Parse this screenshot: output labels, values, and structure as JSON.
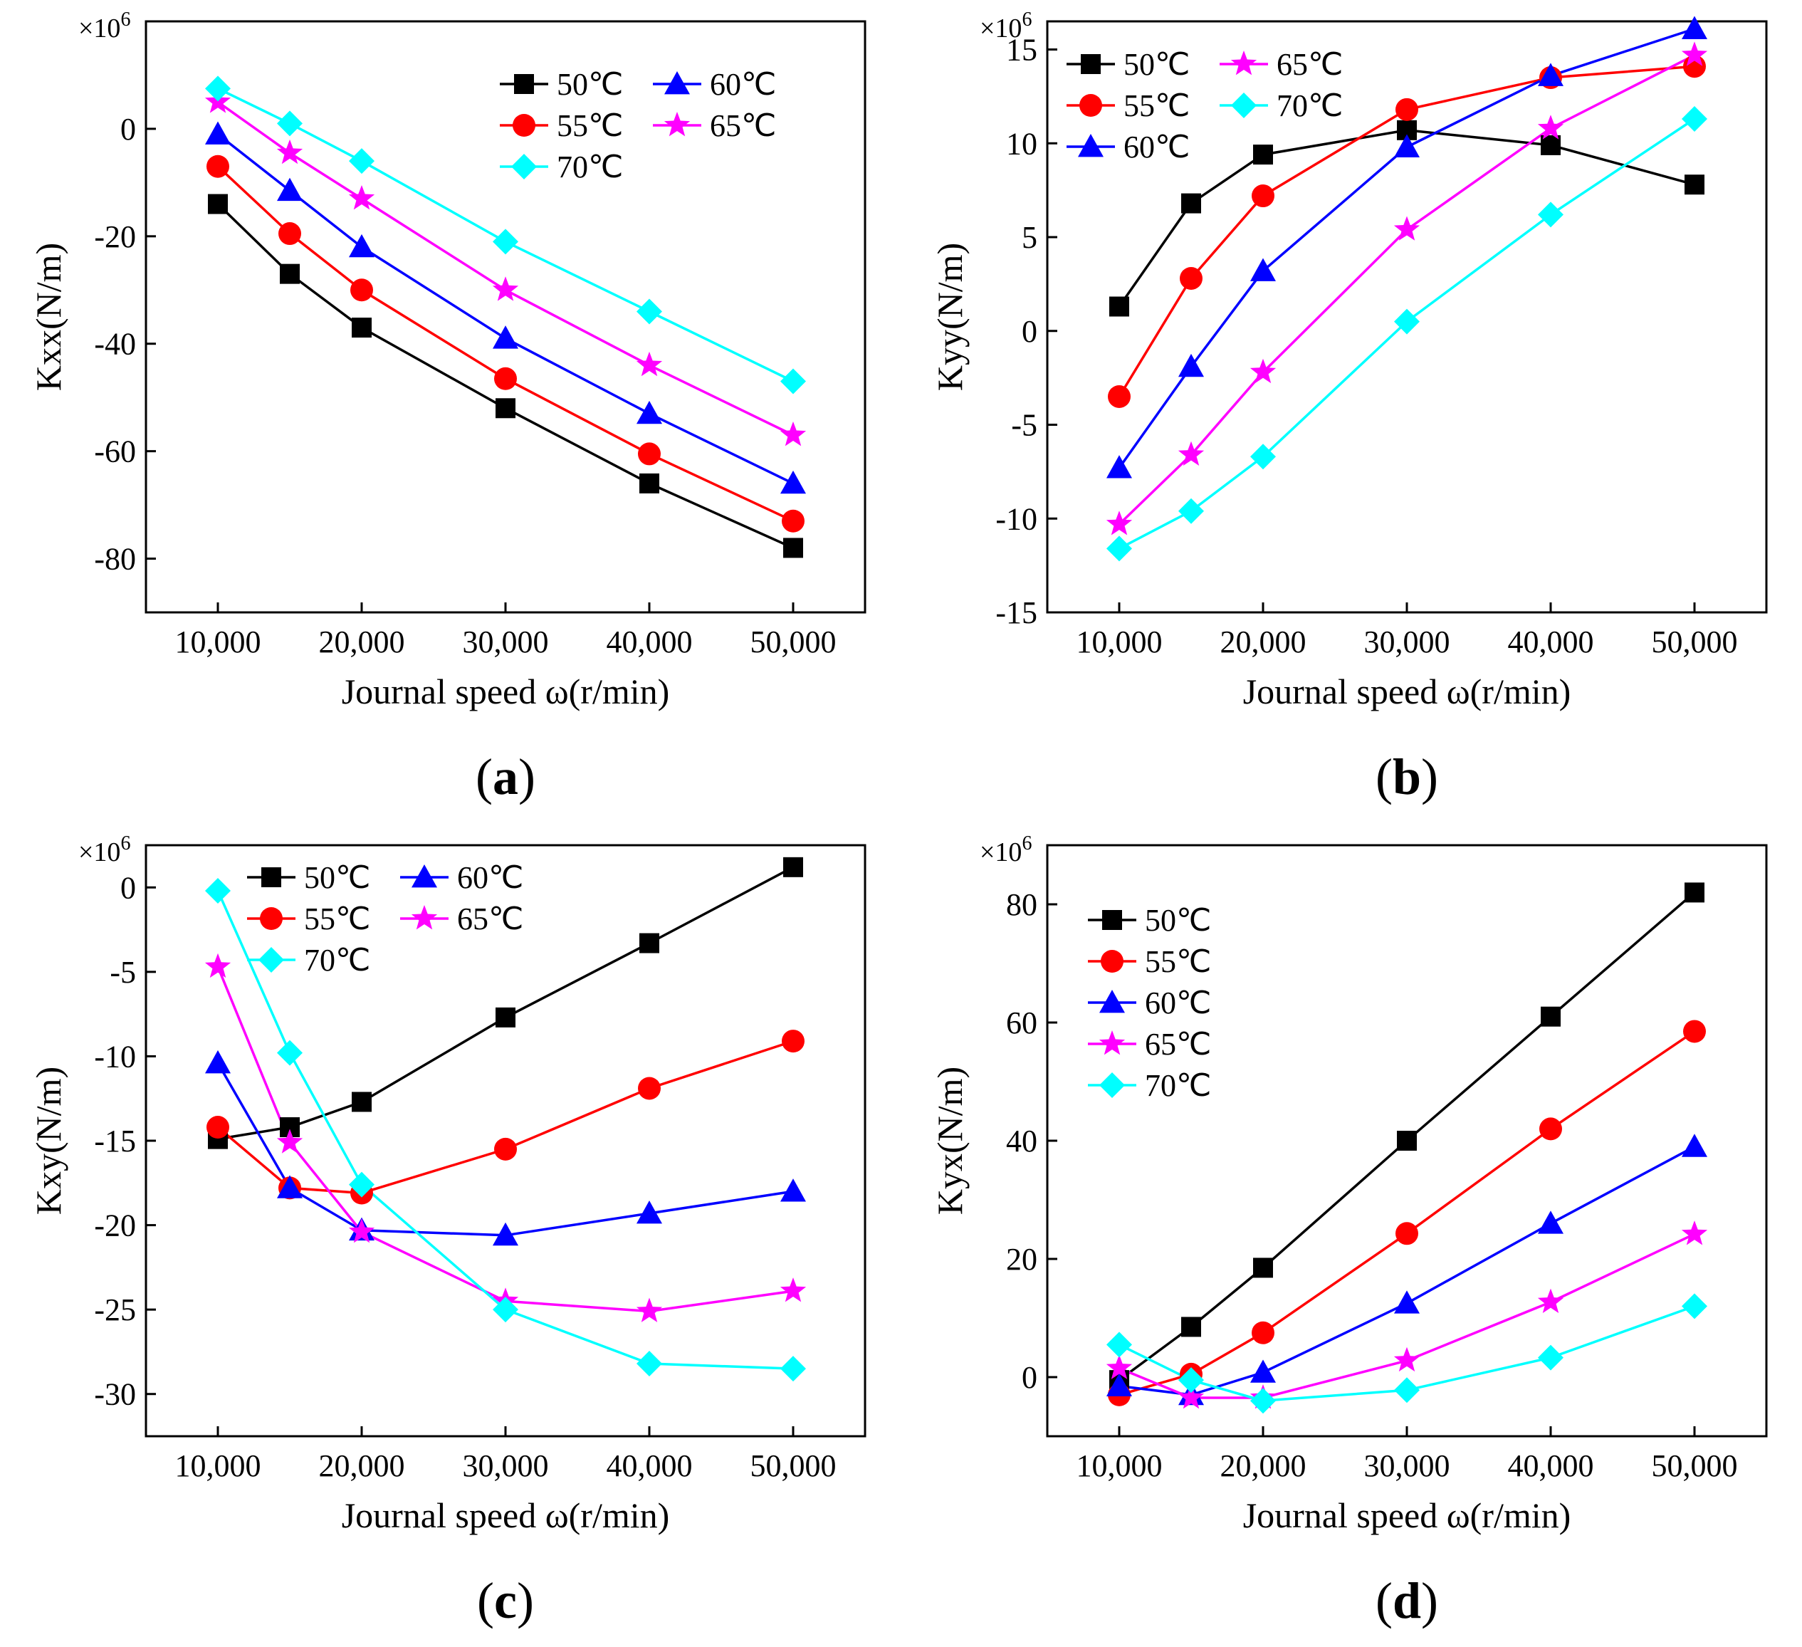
{
  "colors": {
    "c50": "#000000",
    "c55": "#ff0000",
    "c60": "#0000ff",
    "c65": "#ff00ff",
    "c70": "#00ffff"
  },
  "chart_data": [
    {
      "id": "a",
      "type": "line",
      "panel_label": "a",
      "xlabel": "Journal speed ω(r/min)",
      "ylabel": "Kxx(N/m)",
      "y_multiplier": "×10",
      "y_exponent": "6",
      "x": [
        10000,
        15000,
        20000,
        30000,
        40000,
        50000
      ],
      "x_ticks": [
        10000,
        20000,
        30000,
        40000,
        50000
      ],
      "x_tick_labels": [
        "10,000",
        "20,000",
        "30,000",
        "40,000",
        "50,000"
      ],
      "xlim": [
        5000,
        55000
      ],
      "ylim": [
        -90,
        20
      ],
      "y_ticks": [
        -80,
        -60,
        -40,
        -20,
        0
      ],
      "y_tick_labels": [
        "-80",
        "-60",
        "-40",
        "-20",
        "0"
      ],
      "legend_position": "top-right",
      "legend_layout": [
        [
          "0",
          "2"
        ],
        [
          "1",
          "3"
        ],
        [
          "4"
        ]
      ],
      "series": [
        {
          "name": "50℃",
          "marker": "square",
          "color": "#000000",
          "values": [
            -14,
            -27,
            -37,
            -52,
            -66,
            -78
          ]
        },
        {
          "name": "55℃",
          "marker": "circle",
          "color": "#ff0000",
          "values": [
            -7,
            -19.5,
            -30,
            -46.5,
            -60.5,
            -73
          ]
        },
        {
          "name": "60℃",
          "marker": "triangle",
          "color": "#0000ff",
          "values": [
            -1,
            -11.5,
            -22,
            -39,
            -53,
            -66
          ]
        },
        {
          "name": "65℃",
          "marker": "star",
          "color": "#ff00ff",
          "values": [
            5,
            -4.5,
            -13,
            -30,
            -44,
            -57
          ]
        },
        {
          "name": "70℃",
          "marker": "diamond",
          "color": "#00ffff",
          "values": [
            7.5,
            1,
            -6,
            -21,
            -34,
            -47
          ]
        }
      ]
    },
    {
      "id": "b",
      "type": "line",
      "panel_label": "b",
      "xlabel": "Journal speed ω(r/min)",
      "ylabel": "Kyy(N/m)",
      "y_multiplier": "×10",
      "y_exponent": "6",
      "x": [
        10000,
        15000,
        20000,
        30000,
        40000,
        50000
      ],
      "x_ticks": [
        10000,
        20000,
        30000,
        40000,
        50000
      ],
      "x_tick_labels": [
        "10,000",
        "20,000",
        "30,000",
        "40,000",
        "50,000"
      ],
      "xlim": [
        5000,
        55000
      ],
      "ylim": [
        -15,
        16.5
      ],
      "y_ticks": [
        -15,
        -10,
        -5,
        0,
        5,
        10,
        15
      ],
      "y_tick_labels": [
        "-15",
        "-10",
        "-5",
        "0",
        "5",
        "10",
        "15"
      ],
      "legend_position": "top-left",
      "legend_layout": [
        [
          "0",
          "3"
        ],
        [
          "1",
          "4"
        ],
        [
          "2"
        ]
      ],
      "series": [
        {
          "name": "50℃",
          "marker": "square",
          "color": "#000000",
          "values": [
            1.3,
            6.8,
            9.4,
            10.7,
            9.9,
            7.8
          ]
        },
        {
          "name": "55℃",
          "marker": "circle",
          "color": "#ff0000",
          "values": [
            -3.5,
            2.8,
            7.2,
            11.8,
            13.5,
            14.1
          ]
        },
        {
          "name": "60℃",
          "marker": "triangle",
          "color": "#0000ff",
          "values": [
            -7.3,
            -1.9,
            3.2,
            9.8,
            13.6,
            16.1
          ]
        },
        {
          "name": "65℃",
          "marker": "star",
          "color": "#ff00ff",
          "values": [
            -10.3,
            -6.6,
            -2.2,
            5.4,
            10.8,
            14.7
          ]
        },
        {
          "name": "70℃",
          "marker": "diamond",
          "color": "#00ffff",
          "values": [
            -11.6,
            -9.6,
            -6.7,
            0.5,
            6.2,
            11.3
          ]
        }
      ]
    },
    {
      "id": "c",
      "type": "line",
      "panel_label": "c",
      "xlabel": "Journal speed ω(r/min)",
      "ylabel": "Kxy(N/m)",
      "y_multiplier": "×10",
      "y_exponent": "6",
      "x": [
        10000,
        15000,
        20000,
        30000,
        40000,
        50000
      ],
      "x_ticks": [
        10000,
        20000,
        30000,
        40000,
        50000
      ],
      "x_tick_labels": [
        "10,000",
        "20,000",
        "30,000",
        "40,000",
        "50,000"
      ],
      "xlim": [
        5000,
        55000
      ],
      "ylim": [
        -32.5,
        2.5
      ],
      "y_ticks": [
        -30,
        -25,
        -20,
        -15,
        -10,
        -5,
        0
      ],
      "y_tick_labels": [
        "-30",
        "-25",
        "-20",
        "-15",
        "-10",
        "-5",
        "0"
      ],
      "legend_position": "top-center",
      "legend_layout": [
        [
          "0",
          "2"
        ],
        [
          "1",
          "3"
        ],
        [
          "4"
        ]
      ],
      "series": [
        {
          "name": "50℃",
          "marker": "square",
          "color": "#000000",
          "values": [
            -14.9,
            -14.2,
            -12.7,
            -7.7,
            -3.3,
            1.2
          ]
        },
        {
          "name": "55℃",
          "marker": "circle",
          "color": "#ff0000",
          "values": [
            -14.2,
            -17.8,
            -18.1,
            -15.5,
            -11.9,
            -9.1
          ]
        },
        {
          "name": "60℃",
          "marker": "triangle",
          "color": "#0000ff",
          "values": [
            -10.4,
            -17.8,
            -20.3,
            -20.6,
            -19.3,
            -18.0
          ]
        },
        {
          "name": "65℃",
          "marker": "star",
          "color": "#ff00ff",
          "values": [
            -4.7,
            -15.1,
            -20.4,
            -24.5,
            -25.1,
            -23.9
          ]
        },
        {
          "name": "70℃",
          "marker": "diamond",
          "color": "#00ffff",
          "values": [
            -0.2,
            -9.8,
            -17.6,
            -25.0,
            -28.2,
            -28.5
          ]
        }
      ]
    },
    {
      "id": "d",
      "type": "line",
      "panel_label": "d",
      "xlabel": "Journal speed ω(r/min)",
      "ylabel": "Kyx(N/m)",
      "y_multiplier": "×10",
      "y_exponent": "6",
      "x": [
        10000,
        15000,
        20000,
        30000,
        40000,
        50000
      ],
      "x_ticks": [
        10000,
        20000,
        30000,
        40000,
        50000
      ],
      "x_tick_labels": [
        "10,000",
        "20,000",
        "30,000",
        "40,000",
        "50,000"
      ],
      "xlim": [
        5000,
        55000
      ],
      "ylim": [
        -10,
        90
      ],
      "y_ticks": [
        0,
        20,
        40,
        60,
        80
      ],
      "y_tick_labels": [
        "0",
        "20",
        "40",
        "60",
        "80"
      ],
      "legend_position": "top-left",
      "legend_layout": [
        [
          "0"
        ],
        [
          "1"
        ],
        [
          "2"
        ],
        [
          "3"
        ],
        [
          "4"
        ]
      ],
      "series": [
        {
          "name": "50℃",
          "marker": "square",
          "color": "#000000",
          "values": [
            -0.5,
            8.5,
            18.5,
            40,
            61,
            82
          ]
        },
        {
          "name": "55℃",
          "marker": "circle",
          "color": "#ff0000",
          "values": [
            -3,
            0.5,
            7.5,
            24.3,
            42,
            58.5
          ]
        },
        {
          "name": "60℃",
          "marker": "triangle",
          "color": "#0000ff",
          "values": [
            -1.5,
            -3,
            0.8,
            12.5,
            26,
            39
          ]
        },
        {
          "name": "65℃",
          "marker": "star",
          "color": "#ff00ff",
          "values": [
            1.5,
            -3.5,
            -3.5,
            2.8,
            12.7,
            24.2
          ]
        },
        {
          "name": "70℃",
          "marker": "diamond",
          "color": "#00ffff",
          "values": [
            5.5,
            -0.5,
            -4,
            -2.2,
            3.3,
            12
          ]
        }
      ]
    }
  ]
}
